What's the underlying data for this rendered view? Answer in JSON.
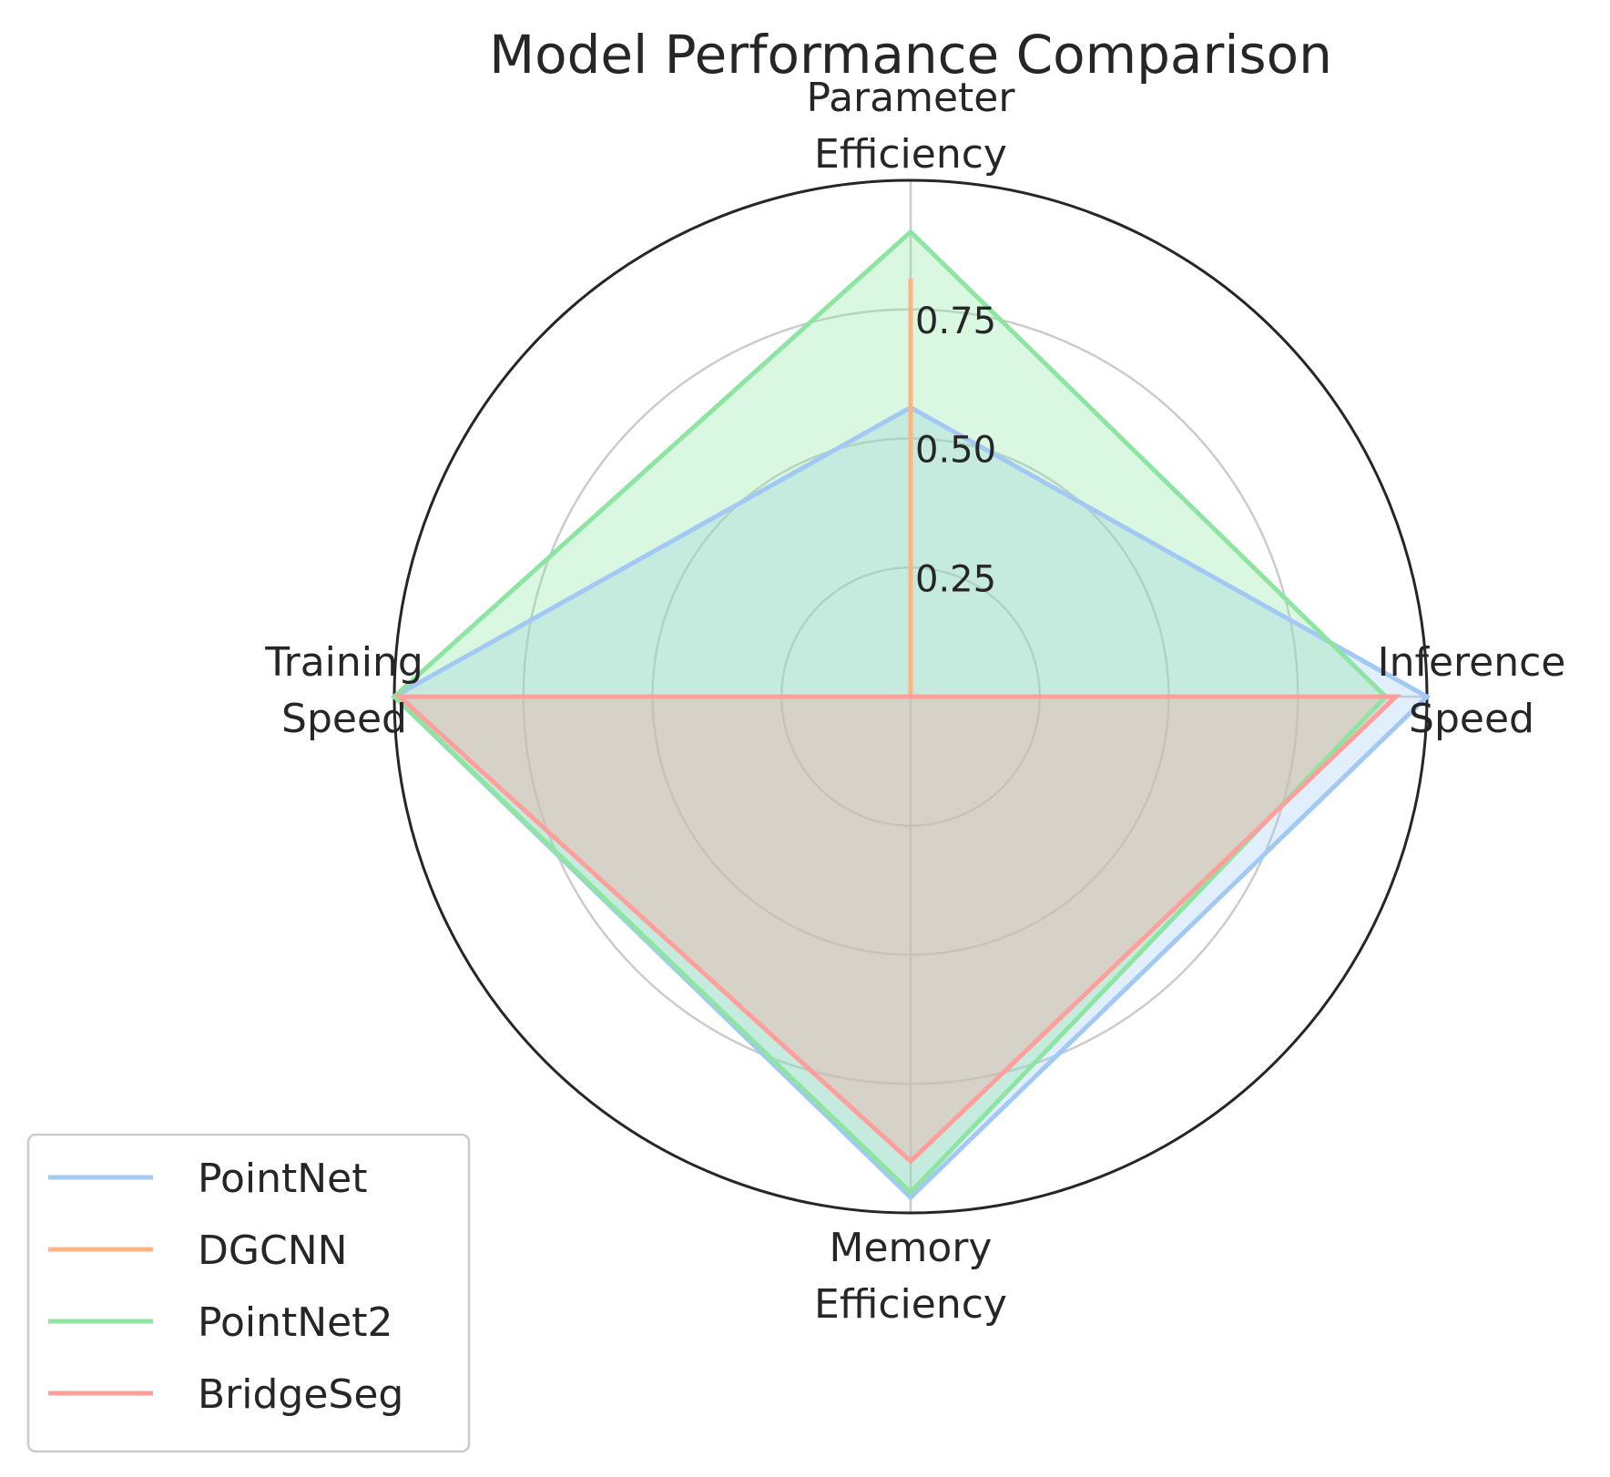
{
  "chart_data": {
    "type": "radar",
    "title": "Model Performance Comparison",
    "axes": [
      [
        "Parameter",
        "Efficiency"
      ],
      [
        "Inference",
        "Speed"
      ],
      [
        "Memory",
        "Efficiency"
      ],
      [
        "Training",
        "Speed"
      ]
    ],
    "rticks": [
      0.25,
      0.5,
      0.75
    ],
    "rtick_labels": [
      "0.25",
      "0.50",
      "0.75"
    ],
    "rlim": [
      0,
      1.0
    ],
    "grid": true,
    "legend_position": "bottom-left",
    "series": [
      {
        "name": "PointNet",
        "values": [
          0.56,
          1.0,
          0.97,
          1.0
        ],
        "color": "#a1c9f4"
      },
      {
        "name": "DGCNN",
        "values": [
          0.81,
          0.0,
          0.0,
          0.0
        ],
        "color": "#ffb482"
      },
      {
        "name": "PointNet2",
        "values": [
          0.9,
          0.92,
          0.96,
          1.0
        ],
        "color": "#8de5a1"
      },
      {
        "name": "BridgeSeg",
        "values": [
          0.0,
          0.94,
          0.9,
          0.99
        ],
        "color": "#ff9f9b"
      }
    ]
  }
}
